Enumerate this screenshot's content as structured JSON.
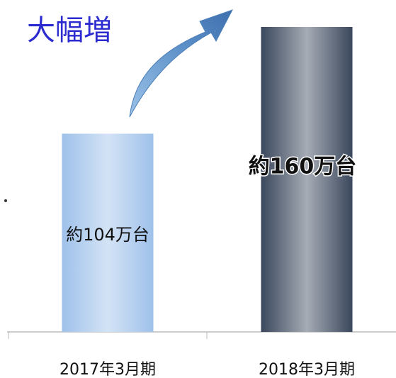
{
  "chart_data": {
    "type": "bar",
    "annotation": "大幅増",
    "categories": [
      "2017年3月期",
      "2018年3月期"
    ],
    "values": [
      104,
      160
    ],
    "value_labels": [
      "約104万台",
      "約160万台"
    ],
    "colors": [
      "#9fc1ea",
      "#3a475c"
    ]
  }
}
